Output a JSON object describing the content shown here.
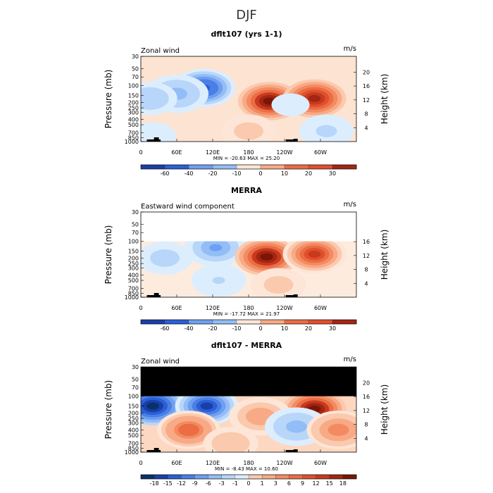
{
  "supertitle": "DJF",
  "colors": {
    "neg": [
      "#08306b",
      "#1a3fa8",
      "#2a5fd6",
      "#4a7fe6",
      "#6f9ff0",
      "#93bdf6",
      "#b8d6fa",
      "#dceefe"
    ],
    "pos": [
      "#fde6d8",
      "#fbc9ad",
      "#f8aa86",
      "#f38b62",
      "#ec6c44",
      "#e0502c",
      "#c73a1f",
      "#a32612",
      "#7a1508"
    ]
  },
  "chart_data": [
    {
      "type": "heatmap",
      "title": "dflt107 (yrs 1-1)",
      "left_label": "Zonal wind",
      "units": "m/s",
      "ylabel": "Pressure (mb)",
      "y2label": "Height (km)",
      "xticks": [
        "0",
        "60E",
        "120E",
        "180",
        "120W",
        "60W"
      ],
      "yticks": [
        "30",
        "50",
        "70",
        "100",
        "150",
        "200",
        "250",
        "300",
        "400",
        "500",
        "700",
        "850",
        "1000"
      ],
      "y2ticks": [
        "20",
        "16",
        "12",
        "8",
        "4"
      ],
      "stats": "MIN = -20.63   MAX =  25.20",
      "colorbar_labels": [
        "-60",
        "-40",
        "-20",
        "-10",
        "0",
        "10",
        "20",
        "30"
      ],
      "masked_top_mb": null,
      "features": [
        {
          "lon": 105,
          "p": 110,
          "value": -18
        },
        {
          "lon": 60,
          "p": 140,
          "value": -8
        },
        {
          "lon": 15,
          "p": 170,
          "value": -6
        },
        {
          "lon": 215,
          "p": 190,
          "value": 24
        },
        {
          "lon": 290,
          "p": 170,
          "value": 22
        },
        {
          "lon": 250,
          "p": 220,
          "value": -2
        },
        {
          "lon": 180,
          "p": 650,
          "value": 4
        },
        {
          "lon": 310,
          "p": 650,
          "value": -4
        },
        {
          "lon": 20,
          "p": 800,
          "value": -3
        }
      ]
    },
    {
      "type": "heatmap",
      "title": "MERRA",
      "left_label": "Eastward wind component",
      "units": "m/s",
      "ylabel": "Pressure (mb)",
      "y2label": "Height (km)",
      "xticks": [
        "0",
        "60E",
        "120E",
        "180",
        "120W",
        "60W"
      ],
      "yticks": [
        "30",
        "50",
        "70",
        "100",
        "150",
        "200",
        "250",
        "300",
        "400",
        "500",
        "700",
        "850",
        "1000"
      ],
      "y2ticks": [
        "16",
        "12",
        "8",
        "4"
      ],
      "stats": "MIN = -17.72   MAX =  21.97",
      "colorbar_labels": [
        "-60",
        "-40",
        "-20",
        "-10",
        "0",
        "10",
        "20",
        "30"
      ],
      "masked_top_mb": 100,
      "features": [
        {
          "lon": 125,
          "p": 130,
          "value": -8
        },
        {
          "lon": 40,
          "p": 200,
          "value": -4
        },
        {
          "lon": 210,
          "p": 190,
          "value": 20
        },
        {
          "lon": 290,
          "p": 170,
          "value": 14
        },
        {
          "lon": 130,
          "p": 500,
          "value": -3
        },
        {
          "lon": 230,
          "p": 600,
          "value": 4
        }
      ]
    },
    {
      "type": "heatmap",
      "title": "dflt107 - MERRA",
      "left_label": "Zonal wind",
      "units": "m/s",
      "ylabel": "Pressure (mb)",
      "y2label": "Height (km)",
      "xticks": [
        "0",
        "60E",
        "120E",
        "180",
        "120W",
        "60W"
      ],
      "yticks": [
        "30",
        "50",
        "70",
        "100",
        "150",
        "200",
        "250",
        "300",
        "400",
        "500",
        "700",
        "850",
        "1000"
      ],
      "y2ticks": [
        "20",
        "16",
        "12",
        "8",
        "4"
      ],
      "stats": "MIN =  -8.43   MAX =  10.60",
      "colorbar_labels": [
        "-18",
        "-15",
        "-12",
        "-9",
        "-6",
        "-3",
        "-1",
        "0",
        "1",
        "3",
        "6",
        "9",
        "12",
        "15",
        "18"
      ],
      "masked_top_mb": 100,
      "features": [
        {
          "lon": 20,
          "p": 150,
          "value": -9
        },
        {
          "lon": 110,
          "p": 150,
          "value": -8
        },
        {
          "lon": 290,
          "p": 170,
          "value": 9
        },
        {
          "lon": 200,
          "p": 230,
          "value": 3
        },
        {
          "lon": 80,
          "p": 400,
          "value": 5
        },
        {
          "lon": 260,
          "p": 350,
          "value": -3
        },
        {
          "lon": 330,
          "p": 400,
          "value": 4
        },
        {
          "lon": 150,
          "p": 700,
          "value": 2
        }
      ]
    }
  ]
}
